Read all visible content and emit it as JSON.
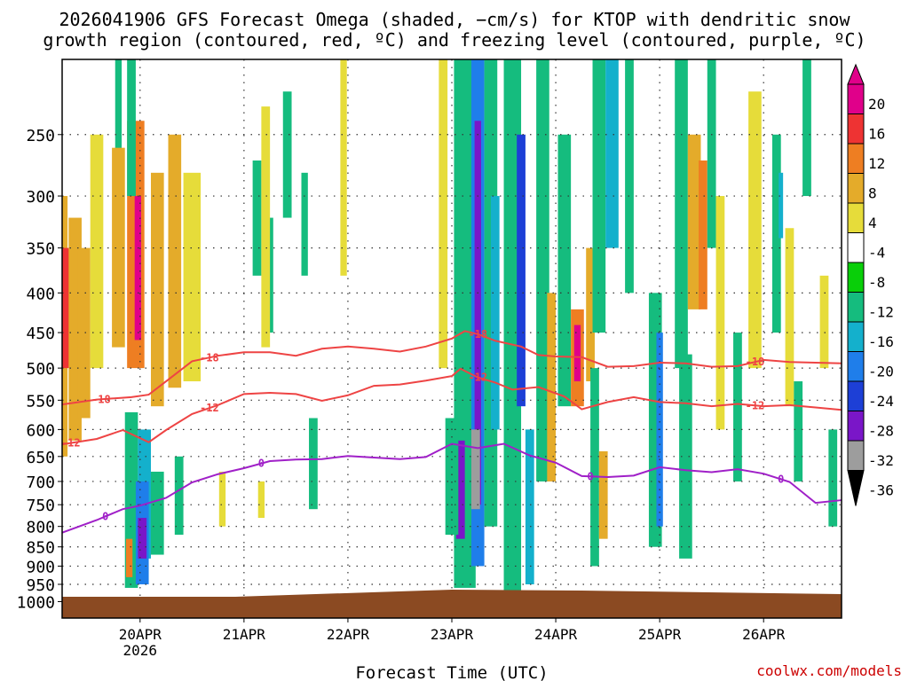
{
  "title_line1": "2026041906 GFS Forecast Omega (shaded, −cm/s) for KTOP with dendritic snow",
  "title_line2": "growth region (contoured, red, ºC) and freezing level (contoured, purple, ºC)",
  "credit": "coolwx.com/models",
  "chart_data": {
    "type": "heatmap",
    "xlabel": "Forecast Time (UTC)",
    "ylabel": "",
    "x_range_hours": [
      0,
      180
    ],
    "y_range_hpa": [
      200,
      1050
    ],
    "x_ticks": [
      {
        "hour": 18,
        "label": "20APR",
        "sublabel": "2026"
      },
      {
        "hour": 42,
        "label": "21APR"
      },
      {
        "hour": 66,
        "label": "22APR"
      },
      {
        "hour": 90,
        "label": "23APR"
      },
      {
        "hour": 114,
        "label": "24APR"
      },
      {
        "hour": 138,
        "label": "25APR"
      },
      {
        "hour": 162,
        "label": "26APR"
      }
    ],
    "y_ticks": [
      250,
      300,
      350,
      400,
      450,
      500,
      550,
      600,
      650,
      700,
      750,
      800,
      850,
      900,
      950,
      1000
    ],
    "colorbar_ticks": [
      20,
      16,
      12,
      8,
      4,
      -4,
      -8,
      -12,
      -16,
      -20,
      -24,
      -28,
      -32,
      -36
    ],
    "colorbar_colors": [
      "#e0008a",
      "#ee3333",
      "#ee7e22",
      "#e4ab2a",
      "#e6dc3a",
      "#ffffff",
      "#09cf09",
      "#15bc7e",
      "#14b0cc",
      "#1f7eea",
      "#1d3fd6",
      "#7a16c8",
      "#9d9d9d",
      "#000000"
    ],
    "surface_color": "#8b4a22",
    "contour_labels": {
      "dgz_top": "-18",
      "dgz_bottom": "-12",
      "freezing": "0"
    },
    "contours": [
      {
        "name": "-18C",
        "color": "#ee4444",
        "points": [
          [
            0,
            557
          ],
          [
            8,
            549
          ],
          [
            16,
            545
          ],
          [
            20,
            541
          ],
          [
            24,
            520
          ],
          [
            30,
            490
          ],
          [
            36,
            482
          ],
          [
            42,
            477
          ],
          [
            48,
            477
          ],
          [
            54,
            482
          ],
          [
            60,
            472
          ],
          [
            66,
            469
          ],
          [
            72,
            472
          ],
          [
            78,
            476
          ],
          [
            84,
            469
          ],
          [
            90,
            458
          ],
          [
            93,
            448
          ],
          [
            96,
            452
          ],
          [
            100,
            461
          ],
          [
            106,
            469
          ],
          [
            110,
            481
          ],
          [
            114,
            483
          ],
          [
            120,
            484
          ],
          [
            126,
            498
          ],
          [
            132,
            497
          ],
          [
            138,
            492
          ],
          [
            144,
            493
          ],
          [
            150,
            498
          ],
          [
            156,
            497
          ],
          [
            162,
            488
          ],
          [
            168,
            491
          ],
          [
            174,
            492
          ],
          [
            180,
            493
          ]
        ]
      },
      {
        "name": "-12C",
        "color": "#ee4444",
        "points": [
          [
            0,
            627
          ],
          [
            8,
            617
          ],
          [
            14,
            601
          ],
          [
            20,
            623
          ],
          [
            24,
            601
          ],
          [
            30,
            573
          ],
          [
            36,
            558
          ],
          [
            42,
            540
          ],
          [
            48,
            538
          ],
          [
            54,
            540
          ],
          [
            60,
            551
          ],
          [
            66,
            542
          ],
          [
            72,
            527
          ],
          [
            78,
            525
          ],
          [
            84,
            519
          ],
          [
            90,
            512
          ],
          [
            92,
            501
          ],
          [
            96,
            514
          ],
          [
            100,
            522
          ],
          [
            104,
            533
          ],
          [
            110,
            529
          ],
          [
            116,
            544
          ],
          [
            120,
            565
          ],
          [
            126,
            553
          ],
          [
            132,
            545
          ],
          [
            138,
            553
          ],
          [
            144,
            555
          ],
          [
            150,
            560
          ],
          [
            156,
            556
          ],
          [
            162,
            560
          ],
          [
            168,
            558
          ],
          [
            174,
            562
          ],
          [
            180,
            566
          ]
        ]
      },
      {
        "name": "0C",
        "color": "#a020c8",
        "points": [
          [
            0,
            815
          ],
          [
            8,
            785
          ],
          [
            14,
            760
          ],
          [
            18,
            752
          ],
          [
            24,
            735
          ],
          [
            30,
            702
          ],
          [
            36,
            685
          ],
          [
            42,
            673
          ],
          [
            48,
            659
          ],
          [
            54,
            656
          ],
          [
            60,
            655
          ],
          [
            66,
            649
          ],
          [
            72,
            652
          ],
          [
            78,
            655
          ],
          [
            84,
            651
          ],
          [
            90,
            626
          ],
          [
            96,
            634
          ],
          [
            102,
            626
          ],
          [
            108,
            648
          ],
          [
            114,
            662
          ],
          [
            120,
            689
          ],
          [
            126,
            691
          ],
          [
            132,
            688
          ],
          [
            138,
            671
          ],
          [
            144,
            677
          ],
          [
            150,
            681
          ],
          [
            156,
            675
          ],
          [
            162,
            684
          ],
          [
            168,
            701
          ],
          [
            174,
            746
          ],
          [
            180,
            740
          ]
        ]
      }
    ],
    "omega_cells": [
      {
        "t": 0.5,
        "p0": 300,
        "p1": 650,
        "w": 1.5,
        "v": 8
      },
      {
        "t": 1,
        "p0": 350,
        "p1": 500,
        "w": 2,
        "v": 16
      },
      {
        "t": 3,
        "p0": 320,
        "p1": 620,
        "w": 3,
        "v": 8
      },
      {
        "t": 5,
        "p0": 350,
        "p1": 580,
        "w": 3,
        "v": 8
      },
      {
        "t": 8,
        "p0": 250,
        "p1": 500,
        "w": 3,
        "v": 4
      },
      {
        "t": 13,
        "p0": 200,
        "p1": 350,
        "w": 1.5,
        "v": -8
      },
      {
        "t": 13,
        "p0": 260,
        "p1": 470,
        "w": 3,
        "v": 8
      },
      {
        "t": 17,
        "p0": 240,
        "p1": 500,
        "w": 4,
        "v": 12
      },
      {
        "t": 17.5,
        "p0": 300,
        "p1": 460,
        "w": 1.5,
        "v": 20
      },
      {
        "t": 16,
        "p0": 200,
        "p1": 300,
        "w": 2,
        "v": -8
      },
      {
        "t": 22,
        "p0": 280,
        "p1": 560,
        "w": 3,
        "v": 8
      },
      {
        "t": 26,
        "p0": 250,
        "p1": 530,
        "w": 3,
        "v": 8
      },
      {
        "t": 30,
        "p0": 280,
        "p1": 520,
        "w": 4,
        "v": 4
      },
      {
        "t": 16,
        "p0": 570,
        "p1": 960,
        "w": 3,
        "v": -8
      },
      {
        "t": 19,
        "p0": 600,
        "p1": 880,
        "w": 3,
        "v": -12
      },
      {
        "t": 18.5,
        "p0": 700,
        "p1": 950,
        "w": 3,
        "v": -16
      },
      {
        "t": 18.5,
        "p0": 780,
        "p1": 880,
        "w": 2,
        "v": -24
      },
      {
        "t": 15.5,
        "p0": 830,
        "p1": 930,
        "w": 1.5,
        "v": 12
      },
      {
        "t": 22,
        "p0": 680,
        "p1": 870,
        "w": 3,
        "v": -8
      },
      {
        "t": 27,
        "p0": 650,
        "p1": 820,
        "w": 2,
        "v": -8
      },
      {
        "t": 45,
        "p0": 270,
        "p1": 380,
        "w": 2,
        "v": -8
      },
      {
        "t": 48,
        "p0": 320,
        "p1": 450,
        "w": 1.5,
        "v": -8
      },
      {
        "t": 52,
        "p0": 220,
        "p1": 320,
        "w": 2,
        "v": -8
      },
      {
        "t": 56,
        "p0": 280,
        "p1": 380,
        "w": 1.5,
        "v": -8
      },
      {
        "t": 47,
        "p0": 230,
        "p1": 470,
        "w": 2,
        "v": 4
      },
      {
        "t": 37,
        "p0": 680,
        "p1": 800,
        "w": 1.5,
        "v": 4
      },
      {
        "t": 46,
        "p0": 700,
        "p1": 780,
        "w": 1.5,
        "v": 4
      },
      {
        "t": 58,
        "p0": 580,
        "p1": 760,
        "w": 2,
        "v": -8
      },
      {
        "t": 65,
        "p0": 200,
        "p1": 380,
        "w": 1.5,
        "v": 4
      },
      {
        "t": 88,
        "p0": 200,
        "p1": 500,
        "w": 2,
        "v": 4
      },
      {
        "t": 93,
        "p0": 200,
        "p1": 960,
        "w": 5,
        "v": -8
      },
      {
        "t": 96,
        "p0": 200,
        "p1": 900,
        "w": 3,
        "v": -16
      },
      {
        "t": 96,
        "p0": 240,
        "p1": 750,
        "w": 1.5,
        "v": -24
      },
      {
        "t": 99,
        "p0": 200,
        "p1": 800,
        "w": 3,
        "v": -8
      },
      {
        "t": 100,
        "p0": 300,
        "p1": 600,
        "w": 2,
        "v": -12
      },
      {
        "t": 104,
        "p0": 200,
        "p1": 970,
        "w": 4,
        "v": -8
      },
      {
        "t": 106,
        "p0": 250,
        "p1": 560,
        "w": 2,
        "v": -20
      },
      {
        "t": 108,
        "p0": 600,
        "p1": 950,
        "w": 2,
        "v": -12
      },
      {
        "t": 92,
        "p0": 620,
        "p1": 830,
        "w": 2,
        "v": -24
      },
      {
        "t": 90,
        "p0": 580,
        "p1": 820,
        "w": 3,
        "v": -8
      },
      {
        "t": 95.5,
        "p0": 600,
        "p1": 760,
        "w": 2,
        "v": -32
      },
      {
        "t": 111,
        "p0": 200,
        "p1": 700,
        "w": 3,
        "v": -8
      },
      {
        "t": 113,
        "p0": 400,
        "p1": 700,
        "w": 2,
        "v": 8
      },
      {
        "t": 116,
        "p0": 250,
        "p1": 560,
        "w": 3,
        "v": -8
      },
      {
        "t": 119,
        "p0": 420,
        "p1": 560,
        "w": 3,
        "v": 12
      },
      {
        "t": 119,
        "p0": 440,
        "p1": 520,
        "w": 1.5,
        "v": 20
      },
      {
        "t": 122,
        "p0": 350,
        "p1": 520,
        "w": 2,
        "v": 8
      },
      {
        "t": 124,
        "p0": 200,
        "p1": 450,
        "w": 3,
        "v": -8
      },
      {
        "t": 127,
        "p0": 200,
        "p1": 350,
        "w": 3,
        "v": -12
      },
      {
        "t": 123,
        "p0": 500,
        "p1": 900,
        "w": 2,
        "v": -8
      },
      {
        "t": 125,
        "p0": 640,
        "p1": 830,
        "w": 2,
        "v": 8
      },
      {
        "t": 131,
        "p0": 200,
        "p1": 400,
        "w": 2,
        "v": -8
      },
      {
        "t": 137,
        "p0": 400,
        "p1": 850,
        "w": 3,
        "v": -8
      },
      {
        "t": 138,
        "p0": 450,
        "p1": 800,
        "w": 1.5,
        "v": -16
      },
      {
        "t": 143,
        "p0": 200,
        "p1": 500,
        "w": 3,
        "v": -8
      },
      {
        "t": 146,
        "p0": 250,
        "p1": 420,
        "w": 3,
        "v": 8
      },
      {
        "t": 148,
        "p0": 270,
        "p1": 420,
        "w": 2,
        "v": 12
      },
      {
        "t": 144,
        "p0": 480,
        "p1": 880,
        "w": 3,
        "v": -8
      },
      {
        "t": 150,
        "p0": 200,
        "p1": 350,
        "w": 2,
        "v": -8
      },
      {
        "t": 152,
        "p0": 300,
        "p1": 600,
        "w": 2,
        "v": 4
      },
      {
        "t": 156,
        "p0": 450,
        "p1": 700,
        "w": 2,
        "v": -8
      },
      {
        "t": 160,
        "p0": 220,
        "p1": 500,
        "w": 3,
        "v": 4
      },
      {
        "t": 165,
        "p0": 250,
        "p1": 450,
        "w": 2,
        "v": -8
      },
      {
        "t": 166,
        "p0": 280,
        "p1": 340,
        "w": 1,
        "v": -12
      },
      {
        "t": 168,
        "p0": 330,
        "p1": 560,
        "w": 2,
        "v": 4
      },
      {
        "t": 172,
        "p0": 200,
        "p1": 300,
        "w": 2,
        "v": -8
      },
      {
        "t": 176,
        "p0": 380,
        "p1": 500,
        "w": 2,
        "v": 4
      },
      {
        "t": 178,
        "p0": 600,
        "p1": 800,
        "w": 2,
        "v": -8
      },
      {
        "t": 170,
        "p0": 520,
        "p1": 700,
        "w": 2,
        "v": -8
      }
    ]
  }
}
